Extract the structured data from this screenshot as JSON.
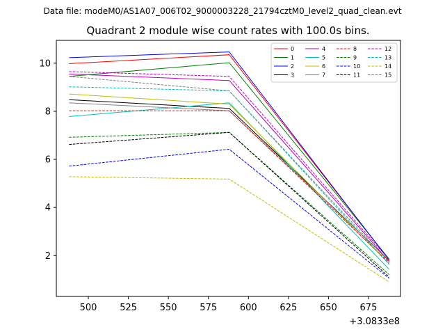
{
  "chart_data": {
    "type": "line",
    "suptitle": "Data file: modeM0/AS1A07_006T02_9000003228_21794cztM0_level2_quad_clean.evt",
    "title": "Quadrant 2 module wise count rates with 100.0s bins.",
    "xlabel": "",
    "ylabel": "",
    "x_offset_label": "+3.0833e8",
    "xlim": [
      480,
      695
    ],
    "ylim": [
      0.3,
      10.95
    ],
    "xticks": [
      500,
      525,
      550,
      575,
      600,
      625,
      650,
      675
    ],
    "yticks": [
      2,
      4,
      6,
      8,
      10
    ],
    "x": [
      488,
      588,
      688
    ],
    "legend_position": "top-right",
    "series": [
      {
        "name": "0",
        "color": "#ff0000",
        "dashed": false,
        "values": [
          9.98,
          10.35,
          1.82
        ]
      },
      {
        "name": "1",
        "color": "#008000",
        "dashed": false,
        "values": [
          9.45,
          10.02,
          1.85
        ]
      },
      {
        "name": "2",
        "color": "#0000ff",
        "dashed": false,
        "values": [
          10.23,
          10.47,
          1.8
        ]
      },
      {
        "name": "3",
        "color": "#000000",
        "dashed": false,
        "values": [
          8.48,
          8.12,
          1.78
        ]
      },
      {
        "name": "4",
        "color": "#bf00bf",
        "dashed": false,
        "values": [
          9.55,
          9.28,
          1.75
        ]
      },
      {
        "name": "5",
        "color": "#00bfbf",
        "dashed": false,
        "values": [
          7.78,
          8.35,
          1.42
        ]
      },
      {
        "name": "6",
        "color": "#bfbf00",
        "dashed": false,
        "values": [
          8.72,
          8.3,
          1.65
        ]
      },
      {
        "name": "7",
        "color": "#808080",
        "dashed": false,
        "values": [
          8.35,
          8.02,
          1.8
        ]
      },
      {
        "name": "8",
        "color": "#ff0000",
        "dashed": true,
        "values": [
          8.02,
          8.02,
          1.7
        ]
      },
      {
        "name": "9",
        "color": "#008000",
        "dashed": true,
        "values": [
          6.92,
          7.12,
          1.2
        ]
      },
      {
        "name": "10",
        "color": "#0000ff",
        "dashed": true,
        "values": [
          5.72,
          6.42,
          1.05
        ]
      },
      {
        "name": "11",
        "color": "#000000",
        "dashed": true,
        "values": [
          6.62,
          7.12,
          1.1
        ]
      },
      {
        "name": "12",
        "color": "#bf00bf",
        "dashed": true,
        "values": [
          9.65,
          9.45,
          1.82
        ]
      },
      {
        "name": "13",
        "color": "#00bfbf",
        "dashed": true,
        "values": [
          9.02,
          8.85,
          1.62
        ]
      },
      {
        "name": "14",
        "color": "#bfbf00",
        "dashed": true,
        "values": [
          5.28,
          5.18,
          0.9
        ]
      },
      {
        "name": "15",
        "color": "#808080",
        "dashed": true,
        "values": [
          9.45,
          8.85,
          1.72
        ]
      }
    ]
  }
}
